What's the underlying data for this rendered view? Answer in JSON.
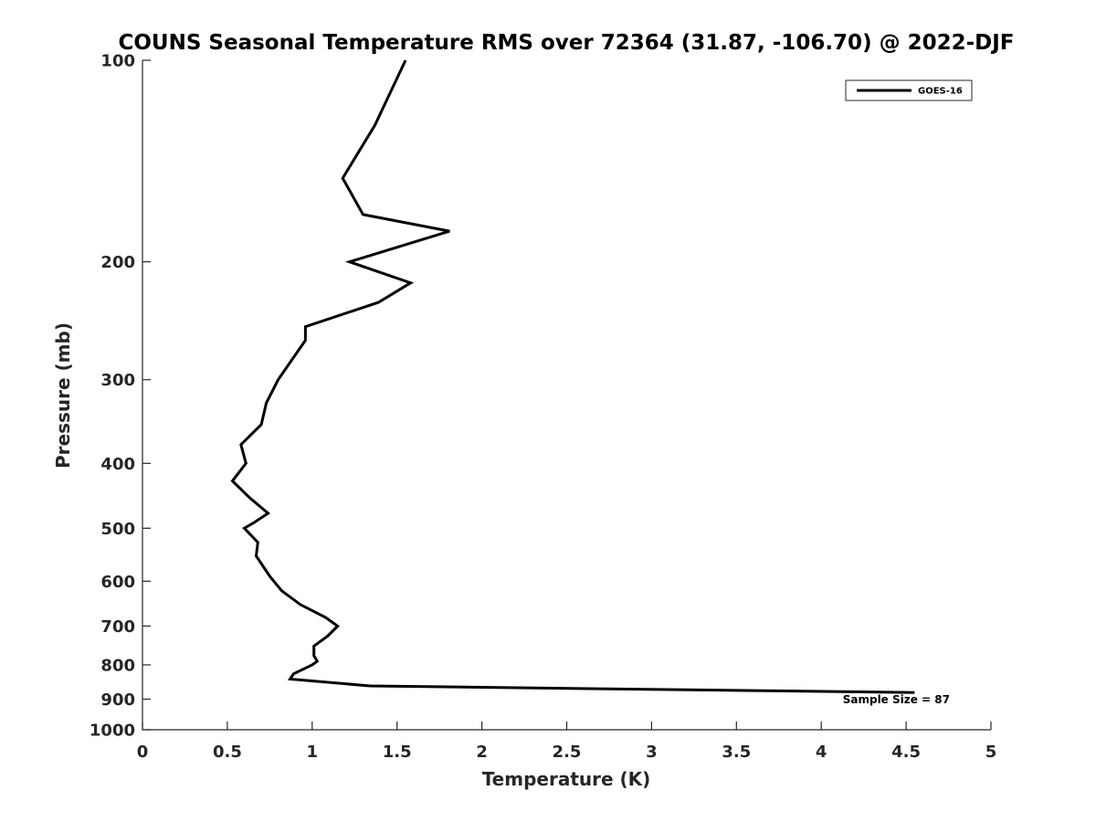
{
  "chart_data": {
    "type": "line",
    "title": "COUNS Seasonal Temperature RMS over 72364 (31.87, -106.70) @ 2022-DJF",
    "xlabel": "Temperature (K)",
    "ylabel": "Pressure (mb)",
    "xlim": [
      0,
      5
    ],
    "ylim": [
      100,
      1000
    ],
    "y_scale": "log",
    "y_reversed": true,
    "grid": false,
    "legend_position": "top-right",
    "xticks": [
      0,
      0.5,
      1,
      1.5,
      2,
      2.5,
      3,
      3.5,
      4,
      4.5,
      5
    ],
    "xtick_labels": [
      "0",
      "0.5",
      "1",
      "1.5",
      "2",
      "2.5",
      "3",
      "3.5",
      "4",
      "4.5",
      "5"
    ],
    "yticks": [
      100,
      200,
      300,
      400,
      500,
      600,
      700,
      800,
      900,
      1000
    ],
    "ytick_labels": [
      "100",
      "200",
      "300",
      "400",
      "500",
      "600",
      "700",
      "800",
      "900",
      "1000"
    ],
    "series": [
      {
        "name": "GOES-16",
        "color": "#000000",
        "points": [
          [
            1.55,
            100
          ],
          [
            1.37,
            125
          ],
          [
            1.18,
            150
          ],
          [
            1.3,
            170
          ],
          [
            1.81,
            180
          ],
          [
            1.22,
            200
          ],
          [
            1.58,
            215
          ],
          [
            1.39,
            230
          ],
          [
            0.96,
            250
          ],
          [
            0.96,
            262
          ],
          [
            0.8,
            300
          ],
          [
            0.73,
            325
          ],
          [
            0.7,
            350
          ],
          [
            0.58,
            375
          ],
          [
            0.61,
            400
          ],
          [
            0.53,
            425
          ],
          [
            0.63,
            450
          ],
          [
            0.74,
            475
          ],
          [
            0.66,
            490
          ],
          [
            0.6,
            500
          ],
          [
            0.68,
            525
          ],
          [
            0.67,
            550
          ],
          [
            0.75,
            590
          ],
          [
            0.82,
            620
          ],
          [
            0.93,
            650
          ],
          [
            1.08,
            680
          ],
          [
            1.15,
            700
          ],
          [
            1.09,
            725
          ],
          [
            1.01,
            750
          ],
          [
            1.01,
            775
          ],
          [
            1.03,
            790
          ],
          [
            1.0,
            800
          ],
          [
            0.89,
            825
          ],
          [
            0.87,
            840
          ],
          [
            1.34,
            860
          ],
          [
            4.55,
            880
          ]
        ]
      }
    ],
    "annotations": [
      {
        "text": "Sample Size = 87"
      }
    ]
  }
}
